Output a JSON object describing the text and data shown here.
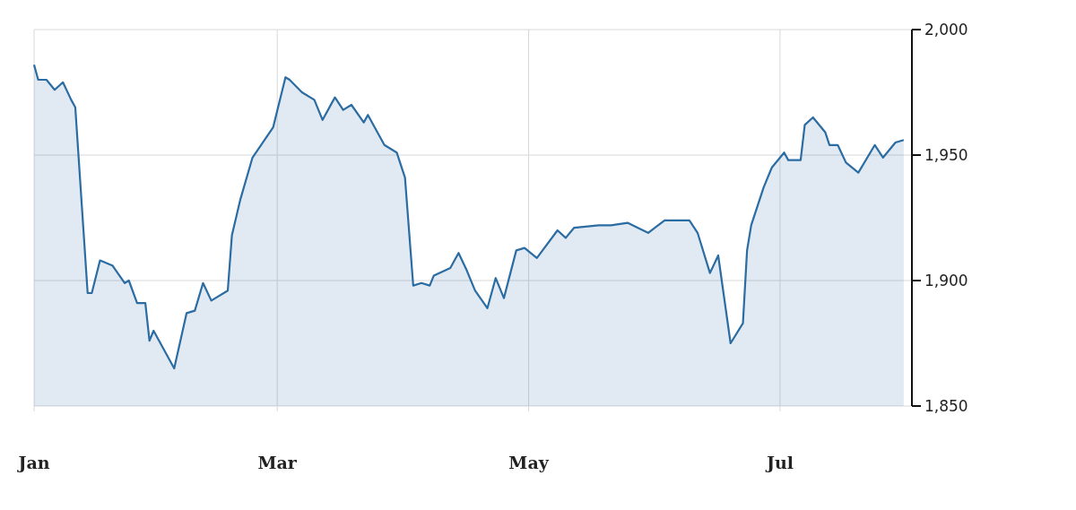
{
  "chart_data": {
    "type": "area",
    "color": "#2b6ca3",
    "grid": true,
    "xlim": [
      "--01-01",
      "--08-02"
    ],
    "xticks": [
      {
        "value": "--01-01",
        "label": "Jan"
      },
      {
        "value": "--03-01",
        "label": "Mar"
      },
      {
        "value": "--05-01",
        "label": "May"
      },
      {
        "value": "--07-01",
        "label": "Jul"
      }
    ],
    "ylim": [
      1850,
      2000
    ],
    "yticks": [
      {
        "value": 1850,
        "label": "1,850"
      },
      {
        "value": 1900,
        "label": "1,900"
      },
      {
        "value": 1950,
        "label": "1,950"
      },
      {
        "value": 2000,
        "label": "2,000"
      }
    ],
    "x": [
      "--01-01",
      "--01-02",
      "--01-04",
      "--01-06",
      "--01-08",
      "--01-10",
      "--01-11",
      "--01-14",
      "--01-15",
      "--01-17",
      "--01-20",
      "--01-23",
      "--01-24",
      "--01-26",
      "--01-28",
      "--01-29",
      "--01-30",
      "--02-04",
      "--02-07",
      "--02-09",
      "--02-11",
      "--02-13",
      "--02-17",
      "--02-18",
      "--02-20",
      "--02-23",
      "--02-28",
      "--03-03",
      "--03-04",
      "--03-07",
      "--03-10",
      "--03-12",
      "--03-15",
      "--03-17",
      "--03-19",
      "--03-22",
      "--03-23",
      "--03-27",
      "--03-30",
      "--04-01",
      "--04-03",
      "--04-05",
      "--04-07",
      "--04-08",
      "--04-12",
      "--04-14",
      "--04-16",
      "--04-18",
      "--04-21",
      "--04-23",
      "--04-25",
      "--04-28",
      "--04-30",
      "--05-03",
      "--05-08",
      "--05-10",
      "--05-12",
      "--05-18",
      "--05-21",
      "--05-25",
      "--05-30",
      "--06-03",
      "--06-09",
      "--06-11",
      "--06-14",
      "--06-16",
      "--06-19",
      "--06-22",
      "--06-23",
      "--06-24",
      "--06-27",
      "--06-29",
      "--07-02",
      "--07-03",
      "--07-06",
      "--07-07",
      "--07-09",
      "--07-12",
      "--07-13",
      "--07-15",
      "--07-17",
      "--07-20",
      "--07-24",
      "--07-26",
      "--07-29",
      "--07-31"
    ],
    "values": [
      1986,
      1980,
      1980,
      1976,
      1979,
      1972,
      1969,
      1895,
      1895,
      1908,
      1906,
      1899,
      1900,
      1891,
      1891,
      1876,
      1880,
      1865,
      1887,
      1888,
      1899,
      1892,
      1896,
      1918,
      1932,
      1949,
      1961,
      1981,
      1980,
      1975,
      1972,
      1964,
      1973,
      1968,
      1970,
      1963,
      1966,
      1954,
      1951,
      1941,
      1898,
      1899,
      1898,
      1902,
      1905,
      1911,
      1904,
      1896,
      1889,
      1901,
      1893,
      1912,
      1913,
      1909,
      1920,
      1917,
      1921,
      1922,
      1922,
      1923,
      1919,
      1924,
      1924,
      1919,
      1903,
      1910,
      1875,
      1883,
      1912,
      1922,
      1937,
      1945,
      1951,
      1948,
      1948,
      1962,
      1965,
      1959,
      1954,
      1954,
      1947,
      1943,
      1954,
      1949,
      1955,
      1956
    ]
  }
}
